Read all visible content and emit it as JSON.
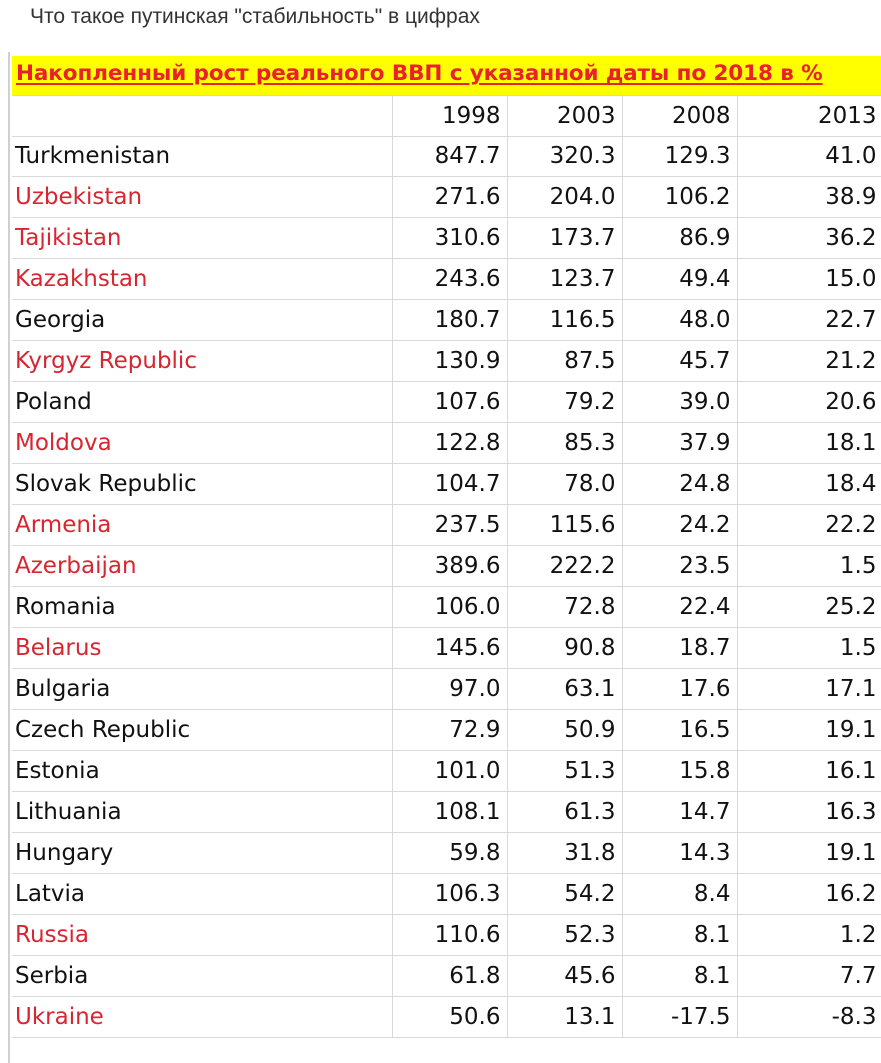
{
  "post": {
    "title": "Что такое путинская \"стабильность\" в цифрах"
  },
  "chart_data": {
    "type": "table",
    "title": "Накопленный рост реального ВВП с указанной даты по 2018 в %",
    "columns": [
      "1998",
      "2003",
      "2008",
      "2013"
    ],
    "highlight_color": "#d72630",
    "banner_background": "#ffff00",
    "banner_text_color": "#e8212b",
    "rows": [
      {
        "country": "Turkmenistan",
        "highlight": false,
        "values": [
          "847.7",
          "320.3",
          "129.3",
          "41.0"
        ]
      },
      {
        "country": "Uzbekistan",
        "highlight": true,
        "values": [
          "271.6",
          "204.0",
          "106.2",
          "38.9"
        ]
      },
      {
        "country": "Tajikistan",
        "highlight": true,
        "values": [
          "310.6",
          "173.7",
          "86.9",
          "36.2"
        ]
      },
      {
        "country": "Kazakhstan",
        "highlight": true,
        "values": [
          "243.6",
          "123.7",
          "49.4",
          "15.0"
        ]
      },
      {
        "country": "Georgia",
        "highlight": false,
        "values": [
          "180.7",
          "116.5",
          "48.0",
          "22.7"
        ]
      },
      {
        "country": "Kyrgyz Republic",
        "highlight": true,
        "values": [
          "130.9",
          "87.5",
          "45.7",
          "21.2"
        ]
      },
      {
        "country": "Poland",
        "highlight": false,
        "values": [
          "107.6",
          "79.2",
          "39.0",
          "20.6"
        ]
      },
      {
        "country": "Moldova",
        "highlight": true,
        "values": [
          "122.8",
          "85.3",
          "37.9",
          "18.1"
        ]
      },
      {
        "country": "Slovak Republic",
        "highlight": false,
        "values": [
          "104.7",
          "78.0",
          "24.8",
          "18.4"
        ]
      },
      {
        "country": "Armenia",
        "highlight": true,
        "values": [
          "237.5",
          "115.6",
          "24.2",
          "22.2"
        ]
      },
      {
        "country": "Azerbaijan",
        "highlight": true,
        "values": [
          "389.6",
          "222.2",
          "23.5",
          "1.5"
        ]
      },
      {
        "country": "Romania",
        "highlight": false,
        "values": [
          "106.0",
          "72.8",
          "22.4",
          "25.2"
        ]
      },
      {
        "country": "Belarus",
        "highlight": true,
        "values": [
          "145.6",
          "90.8",
          "18.7",
          "1.5"
        ]
      },
      {
        "country": "Bulgaria",
        "highlight": false,
        "values": [
          "97.0",
          "63.1",
          "17.6",
          "17.1"
        ]
      },
      {
        "country": "Czech Republic",
        "highlight": false,
        "values": [
          "72.9",
          "50.9",
          "16.5",
          "19.1"
        ]
      },
      {
        "country": "Estonia",
        "highlight": false,
        "values": [
          "101.0",
          "51.3",
          "15.8",
          "16.1"
        ]
      },
      {
        "country": "Lithuania",
        "highlight": false,
        "values": [
          "108.1",
          "61.3",
          "14.7",
          "16.3"
        ]
      },
      {
        "country": "Hungary",
        "highlight": false,
        "values": [
          "59.8",
          "31.8",
          "14.3",
          "19.1"
        ]
      },
      {
        "country": "Latvia",
        "highlight": false,
        "values": [
          "106.3",
          "54.2",
          "8.4",
          "16.2"
        ]
      },
      {
        "country": "Russia",
        "highlight": true,
        "values": [
          "110.6",
          "52.3",
          "8.1",
          "1.2"
        ]
      },
      {
        "country": "Serbia",
        "highlight": false,
        "values": [
          "61.8",
          "45.6",
          "8.1",
          "7.7"
        ]
      },
      {
        "country": "Ukraine",
        "highlight": true,
        "values": [
          "50.6",
          "13.1",
          "-17.5",
          "-8.3"
        ]
      }
    ]
  }
}
